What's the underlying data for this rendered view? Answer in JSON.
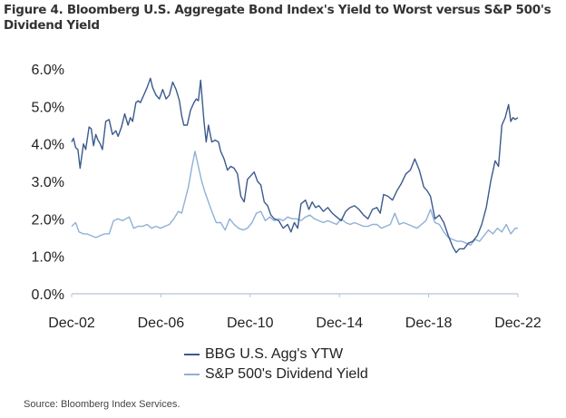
{
  "chart_data": {
    "type": "line",
    "title": "Figure 4. Bloomberg U.S. Aggregate Bond Index's Yield to Worst versus S&P 500's Dividend Yield",
    "xlabel": "",
    "ylabel": "",
    "x_range": [
      2002.92,
      2022.92
    ],
    "ylim": [
      0,
      6
    ],
    "y_ticks": [
      "0.0%",
      "1.0%",
      "2.0%",
      "3.0%",
      "4.0%",
      "5.0%",
      "6.0%"
    ],
    "y_tick_values": [
      0,
      1,
      2,
      3,
      4,
      5,
      6
    ],
    "x_ticks": [
      "Dec-02",
      "Dec-06",
      "Dec-10",
      "Dec-14",
      "Dec-18",
      "Dec-22"
    ],
    "x_tick_values": [
      2002.92,
      2006.92,
      2010.92,
      2014.92,
      2018.92,
      2022.92
    ],
    "grid": false,
    "legend_position": "bottom",
    "series": [
      {
        "name": "BBG U.S. Agg's YTW",
        "color": "#3b5a8c",
        "x": [
          2002.92,
          2003.0,
          2003.1,
          2003.2,
          2003.3,
          2003.45,
          2003.55,
          2003.7,
          2003.8,
          2003.9,
          2004.0,
          2004.1,
          2004.2,
          2004.3,
          2004.45,
          2004.6,
          2004.75,
          2004.9,
          2005.0,
          2005.15,
          2005.3,
          2005.45,
          2005.55,
          2005.65,
          2005.8,
          2005.9,
          2006.0,
          2006.15,
          2006.3,
          2006.45,
          2006.55,
          2006.7,
          2006.85,
          2007.0,
          2007.15,
          2007.3,
          2007.45,
          2007.6,
          2007.75,
          2007.85,
          2007.95,
          2008.1,
          2008.25,
          2008.4,
          2008.5,
          2008.6,
          2008.7,
          2008.85,
          2008.95,
          2009.05,
          2009.2,
          2009.35,
          2009.5,
          2009.6,
          2009.75,
          2009.9,
          2010.05,
          2010.2,
          2010.35,
          2010.5,
          2010.65,
          2010.8,
          2010.95,
          2011.1,
          2011.25,
          2011.4,
          2011.55,
          2011.7,
          2011.85,
          2012.0,
          2012.2,
          2012.4,
          2012.6,
          2012.75,
          2012.9,
          2013.05,
          2013.2,
          2013.4,
          2013.55,
          2013.7,
          2013.85,
          2014.0,
          2014.2,
          2014.4,
          2014.6,
          2014.8,
          2015.0,
          2015.2,
          2015.4,
          2015.6,
          2015.8,
          2016.0,
          2016.2,
          2016.4,
          2016.6,
          2016.75,
          2016.9,
          2017.1,
          2017.3,
          2017.5,
          2017.7,
          2017.9,
          2018.1,
          2018.3,
          2018.5,
          2018.7,
          2018.85,
          2019.0,
          2019.2,
          2019.4,
          2019.6,
          2019.8,
          2020.0,
          2020.15,
          2020.3,
          2020.5,
          2020.7,
          2020.9,
          2021.1,
          2021.3,
          2021.5,
          2021.7,
          2021.9,
          2022.05,
          2022.2,
          2022.35,
          2022.5,
          2022.6,
          2022.7,
          2022.8,
          2022.92
        ],
        "values": [
          4.05,
          4.15,
          3.9,
          3.85,
          3.35,
          4.0,
          3.85,
          4.45,
          4.4,
          3.95,
          4.25,
          4.1,
          4.0,
          3.85,
          4.6,
          4.65,
          4.25,
          4.35,
          4.2,
          4.45,
          4.8,
          4.5,
          4.7,
          4.6,
          5.1,
          5.15,
          5.1,
          5.3,
          5.5,
          5.75,
          5.5,
          5.3,
          5.2,
          5.45,
          5.2,
          5.3,
          5.65,
          5.45,
          5.15,
          4.75,
          4.5,
          4.5,
          4.9,
          5.1,
          5.2,
          5.15,
          5.7,
          4.6,
          4.05,
          4.5,
          4.05,
          4.1,
          4.05,
          3.8,
          3.6,
          3.3,
          3.4,
          3.35,
          3.2,
          2.6,
          2.45,
          3.05,
          3.15,
          3.25,
          3.0,
          2.9,
          2.45,
          2.35,
          2.1,
          2.0,
          1.95,
          1.75,
          1.85,
          1.65,
          1.9,
          1.75,
          2.4,
          2.5,
          2.25,
          2.45,
          2.3,
          2.35,
          2.2,
          2.3,
          2.15,
          2.05,
          1.95,
          2.2,
          2.3,
          2.35,
          2.25,
          2.1,
          2.0,
          2.25,
          2.3,
          2.15,
          2.65,
          2.6,
          2.5,
          2.75,
          2.95,
          3.2,
          3.3,
          3.6,
          3.3,
          2.85,
          2.75,
          2.6,
          2.0,
          2.1,
          1.9,
          1.55,
          1.25,
          1.1,
          1.2,
          1.2,
          1.35,
          1.4,
          1.55,
          1.85,
          2.3,
          3.0,
          3.55,
          3.4,
          4.5,
          4.7,
          5.05,
          4.6,
          4.7,
          4.65,
          4.7
        ]
      },
      {
        "name": "S&P 500's Dividend Yield",
        "color": "#8fb0d6",
        "x": [
          2002.92,
          2003.1,
          2003.25,
          2003.45,
          2003.6,
          2003.8,
          2004.0,
          2004.2,
          2004.4,
          2004.6,
          2004.8,
          2005.0,
          2005.2,
          2005.35,
          2005.5,
          2005.7,
          2005.9,
          2006.1,
          2006.3,
          2006.5,
          2006.7,
          2006.9,
          2007.1,
          2007.3,
          2007.5,
          2007.7,
          2007.85,
          2008.0,
          2008.15,
          2008.3,
          2008.45,
          2008.6,
          2008.75,
          2008.9,
          2009.05,
          2009.2,
          2009.4,
          2009.6,
          2009.8,
          2010.0,
          2010.2,
          2010.4,
          2010.6,
          2010.8,
          2011.0,
          2011.2,
          2011.4,
          2011.6,
          2011.8,
          2012.0,
          2012.2,
          2012.4,
          2012.6,
          2012.8,
          2013.0,
          2013.2,
          2013.4,
          2013.6,
          2013.8,
          2014.0,
          2014.2,
          2014.4,
          2014.6,
          2014.8,
          2015.0,
          2015.2,
          2015.4,
          2015.6,
          2015.8,
          2016.0,
          2016.2,
          2016.4,
          2016.6,
          2016.8,
          2017.0,
          2017.2,
          2017.4,
          2017.6,
          2017.8,
          2018.0,
          2018.2,
          2018.4,
          2018.6,
          2018.8,
          2019.0,
          2019.2,
          2019.4,
          2019.6,
          2019.8,
          2020.0,
          2020.2,
          2020.4,
          2020.6,
          2020.8,
          2021.0,
          2021.2,
          2021.4,
          2021.6,
          2021.8,
          2022.0,
          2022.2,
          2022.4,
          2022.6,
          2022.8,
          2022.92
        ],
        "values": [
          1.8,
          1.9,
          1.65,
          1.6,
          1.6,
          1.55,
          1.5,
          1.55,
          1.6,
          1.6,
          1.95,
          2.0,
          1.95,
          2.0,
          2.05,
          1.75,
          1.8,
          1.8,
          1.85,
          1.75,
          1.8,
          1.75,
          1.8,
          1.85,
          2.0,
          2.2,
          2.15,
          2.5,
          2.85,
          3.35,
          3.8,
          3.4,
          3.0,
          2.7,
          2.45,
          2.2,
          1.9,
          1.9,
          1.7,
          2.0,
          1.85,
          1.75,
          1.7,
          1.75,
          1.9,
          2.15,
          2.2,
          1.95,
          2.05,
          1.95,
          2.0,
          1.95,
          2.05,
          2.0,
          2.0,
          1.95,
          2.05,
          2.1,
          2.0,
          1.95,
          1.9,
          1.95,
          1.9,
          1.85,
          2.0,
          1.9,
          1.85,
          1.9,
          1.85,
          1.8,
          1.8,
          1.85,
          1.85,
          1.75,
          1.8,
          1.85,
          2.15,
          1.85,
          1.9,
          1.85,
          1.8,
          1.75,
          1.85,
          1.95,
          2.25,
          1.9,
          1.85,
          1.65,
          1.5,
          1.45,
          1.4,
          1.4,
          1.35,
          1.3,
          1.45,
          1.4,
          1.55,
          1.7,
          1.6,
          1.75,
          1.65,
          1.85,
          1.6,
          1.75,
          1.75
        ]
      }
    ]
  },
  "legend": {
    "items": [
      {
        "label": "BBG U.S. Agg's YTW",
        "color": "#3b5a8c"
      },
      {
        "label": "S&P 500's Dividend Yield",
        "color": "#8fb0d6"
      }
    ]
  },
  "source": "Source: Bloomberg Index Services."
}
